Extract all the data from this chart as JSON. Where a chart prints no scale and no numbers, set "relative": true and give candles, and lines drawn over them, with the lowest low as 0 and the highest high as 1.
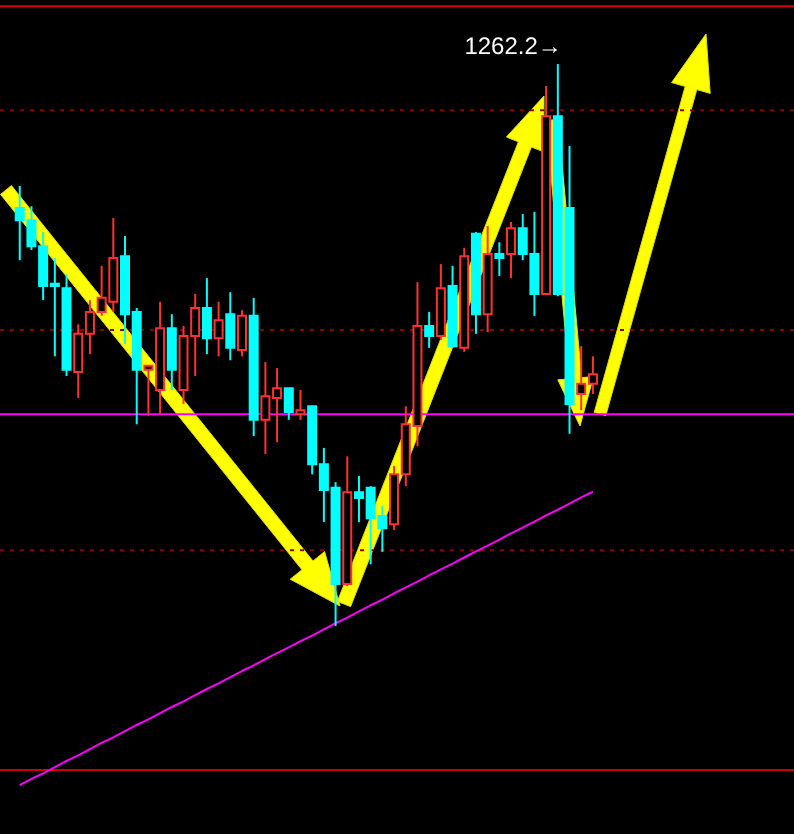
{
  "chart_data": {
    "type": "candlestick",
    "relative": true,
    "categories": [
      null,
      null,
      null,
      null,
      null,
      null,
      null,
      null,
      null,
      null,
      null,
      null,
      null,
      null,
      null,
      null,
      null,
      null,
      null,
      null,
      null,
      null,
      null,
      null,
      null,
      null,
      null,
      null,
      null,
      null,
      null,
      null,
      null,
      null,
      null,
      null,
      null,
      null,
      null,
      null,
      null,
      null,
      null,
      null,
      null,
      null,
      null,
      null,
      null,
      null
    ],
    "ohlc": [
      [
        0.744,
        0.783,
        0.651,
        0.722
      ],
      [
        0.722,
        0.747,
        0.669,
        0.676
      ],
      [
        0.676,
        0.701,
        0.58,
        0.605
      ],
      [
        0.609,
        0.655,
        0.48,
        0.605
      ],
      [
        0.601,
        0.626,
        0.445,
        0.456
      ],
      [
        0.452,
        0.537,
        0.406,
        0.52
      ],
      [
        0.52,
        0.58,
        0.484,
        0.559
      ],
      [
        0.559,
        0.641,
        0.552,
        0.584
      ],
      [
        0.577,
        0.726,
        0.559,
        0.655
      ],
      [
        0.658,
        0.694,
        0.502,
        0.555
      ],
      [
        0.559,
        0.566,
        0.359,
        0.456
      ],
      [
        0.456,
        0.463,
        0.374,
        0.463
      ],
      [
        0.42,
        0.577,
        0.377,
        0.53
      ],
      [
        0.53,
        0.555,
        0.42,
        0.456
      ],
      [
        0.42,
        0.534,
        0.395,
        0.516
      ],
      [
        0.516,
        0.591,
        0.445,
        0.566
      ],
      [
        0.566,
        0.619,
        0.484,
        0.512
      ],
      [
        0.512,
        0.577,
        0.48,
        0.544
      ],
      [
        0.555,
        0.594,
        0.473,
        0.495
      ],
      [
        0.491,
        0.562,
        0.48,
        0.552
      ],
      [
        0.552,
        0.584,
        0.338,
        0.367
      ],
      [
        0.367,
        0.47,
        0.306,
        0.409
      ],
      [
        0.406,
        0.459,
        0.327,
        0.423
      ],
      [
        0.423,
        0.423,
        0.367,
        0.381
      ],
      [
        0.377,
        0.42,
        0.367,
        0.384
      ],
      [
        0.391,
        0.391,
        0.27,
        0.288
      ],
      [
        0.288,
        0.317,
        0.185,
        0.242
      ],
      [
        0.246,
        0.256,
        0.0,
        0.075
      ],
      [
        0.075,
        0.302,
        0.071,
        0.238
      ],
      [
        0.238,
        0.267,
        0.185,
        0.228
      ],
      [
        0.246,
        0.249,
        0.11,
        0.192
      ],
      [
        0.196,
        0.214,
        0.132,
        0.174
      ],
      [
        0.181,
        0.285,
        0.171,
        0.27
      ],
      [
        0.27,
        0.391,
        0.249,
        0.359
      ],
      [
        0.356,
        0.612,
        0.32,
        0.534
      ],
      [
        0.534,
        0.559,
        0.495,
        0.516
      ],
      [
        0.516,
        0.644,
        0.509,
        0.601
      ],
      [
        0.605,
        0.641,
        0.495,
        0.498
      ],
      [
        0.495,
        0.673,
        0.488,
        0.658
      ],
      [
        0.698,
        0.701,
        0.52,
        0.555
      ],
      [
        0.555,
        0.712,
        0.523,
        0.662
      ],
      [
        0.662,
        0.683,
        0.623,
        0.655
      ],
      [
        0.662,
        0.719,
        0.619,
        0.708
      ],
      [
        0.708,
        0.733,
        0.651,
        0.662
      ],
      [
        0.662,
        0.737,
        0.552,
        0.591
      ],
      [
        0.591,
        0.961,
        0.591,
        0.907
      ],
      [
        0.907,
        1.0,
        0.587,
        0.591
      ],
      [
        0.744,
        0.854,
        0.342,
        0.395
      ],
      [
        0.413,
        0.498,
        0.384,
        0.431
      ],
      [
        0.431,
        0.48,
        0.413,
        0.448
      ]
    ],
    "colors": [
      "#00ffff",
      "#00ffff",
      "#00ffff",
      "#00ffff",
      "#00ffff",
      "#ff3232",
      "#ff3232",
      "#ff3232",
      "#ff3232",
      "#00ffff",
      "#00ffff",
      "#ff3232",
      "#ff3232",
      "#00ffff",
      "#ff3232",
      "#ff3232",
      "#00ffff",
      "#ff3232",
      "#00ffff",
      "#ff3232",
      "#00ffff",
      "#ff3232",
      "#ff3232",
      "#00ffff",
      "#ff3232",
      "#00ffff",
      "#00ffff",
      "#00ffff",
      "#ff3232",
      "#00ffff",
      "#00ffff",
      "#00ffff",
      "#ff3232",
      "#ff3232",
      "#ff3232",
      "#00ffff",
      "#ff3232",
      "#00ffff",
      "#ff3232",
      "#00ffff",
      "#ff3232",
      "#00ffff",
      "#ff3232",
      "#00ffff",
      "#00ffff",
      "#ff3232",
      "#00ffff",
      "#00ffff",
      "#ff3232",
      "#ff3232"
    ],
    "series": [
      {
        "type": "line",
        "color": "#ff00ff",
        "values": [
          -0.283,
          -0.272,
          -0.262,
          -0.251,
          -0.24,
          -0.23,
          -0.219,
          -0.208,
          -0.198,
          -0.187,
          -0.176,
          -0.166,
          -0.155,
          -0.144,
          -0.134,
          -0.123,
          -0.112,
          -0.102,
          -0.091,
          -0.08,
          -0.07,
          -0.059,
          -0.048,
          -0.038,
          -0.027,
          -0.017,
          -0.006,
          0.005,
          0.015,
          0.026,
          0.037,
          0.047,
          0.058,
          0.069,
          0.079,
          0.09,
          0.101,
          0.111,
          0.122,
          0.133,
          0.143,
          0.154,
          0.165,
          0.175,
          0.186,
          0.197,
          0.207,
          0.218,
          0.229,
          0.239
        ]
      }
    ],
    "ref_lines": [
      {
        "axis": "y",
        "value": 0.377,
        "color": "#ff00ff",
        "line_style": "solid"
      },
      {
        "axis": "y",
        "value": 0.918,
        "color": "#8b0000",
        "line_style": "dotted"
      },
      {
        "axis": "y",
        "value": 0.527,
        "color": "#8b0000",
        "line_style": "dotted"
      },
      {
        "axis": "y",
        "value": 0.135,
        "color": "#8b0000",
        "line_style": "dotted"
      },
      {
        "axis": "y",
        "value": 1.103,
        "color": "#cc0000",
        "line_style": "solid"
      },
      {
        "axis": "y",
        "value": -0.256,
        "color": "#cc0000",
        "line_style": "solid"
      }
    ],
    "annotations": [
      "1262.2→"
    ]
  }
}
